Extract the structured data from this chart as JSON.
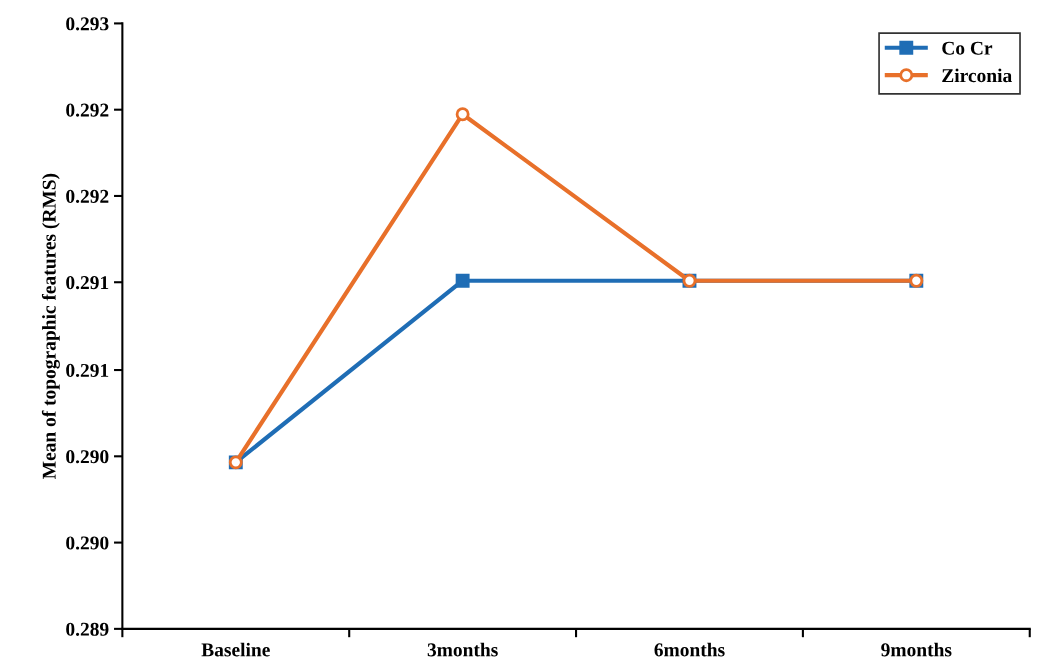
{
  "chart_data": {
    "type": "line",
    "ylabel": "Mean of topographic features (RMS)",
    "categories": [
      "Baseline",
      "3months",
      "6months",
      "9months"
    ],
    "series": [
      {
        "name": "Co Cr",
        "color": "#1f6db5",
        "marker": "square",
        "values": [
          0.2901,
          0.2913,
          0.2913,
          0.2913
        ]
      },
      {
        "name": "Zirconia",
        "color": "#e8702a",
        "marker": "circle",
        "values": [
          0.2901,
          0.2924,
          0.2913,
          0.2913
        ]
      }
    ],
    "ylim": [
      0.289,
      0.293
    ],
    "yticks": [
      {
        "value": 0.289,
        "label": "0.289"
      },
      {
        "value": 0.28957,
        "label": "0.290"
      },
      {
        "value": 0.29014,
        "label": "0.290"
      },
      {
        "value": 0.29071,
        "label": "0.291"
      },
      {
        "value": 0.29129,
        "label": "0.291"
      },
      {
        "value": 0.29186,
        "label": "0.292"
      },
      {
        "value": 0.29243,
        "label": "0.292"
      },
      {
        "value": 0.293,
        "label": "0.293"
      }
    ],
    "grid": false,
    "legend": "top right",
    "line_style": "solid"
  }
}
